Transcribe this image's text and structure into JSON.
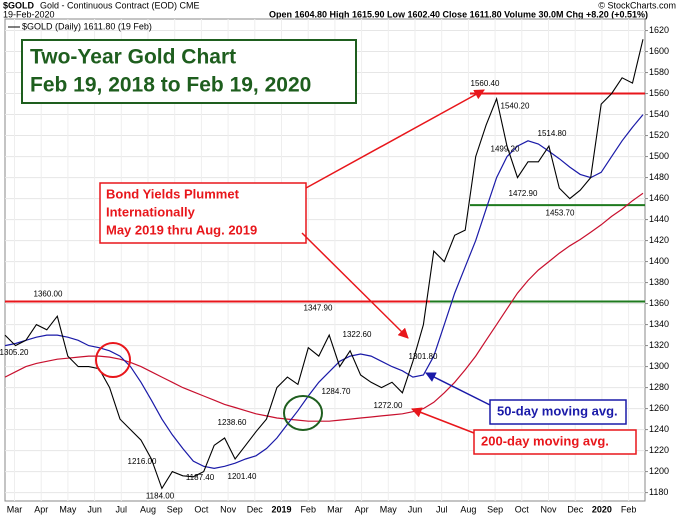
{
  "chart_data": {
    "type": "line",
    "symbol": "$GOLD",
    "subtitle": "Gold - Continuous Contract (EOD) CME",
    "date": "19-Feb-2020",
    "quote": "Open 1604.80  High 1615.90  Low 1602.40  Close 1611.80  Volume 30.0M  Chg +8.20 (+0.51%)",
    "credit": "© StockCharts.com",
    "title": [
      "Two-Year Gold Chart",
      "Feb 19, 2018 to Feb 19, 2020"
    ],
    "callout": [
      "Bond Yields Plummet",
      "Internationally",
      "May 2019 thru Aug. 2019"
    ],
    "x_labels": [
      "Mar",
      "Apr",
      "May",
      "Jun",
      "Jul",
      "Aug",
      "Sep",
      "Oct",
      "Nov",
      "Dec",
      "2019",
      "Feb",
      "Mar",
      "Apr",
      "May",
      "Jun",
      "Jul",
      "Aug",
      "Sep",
      "Oct",
      "Nov",
      "Dec",
      "2020",
      "Feb"
    ],
    "ylim": [
      1172,
      1631
    ],
    "yticks": [
      1180,
      1200,
      1220,
      1240,
      1260,
      1280,
      1300,
      1320,
      1340,
      1360,
      1380,
      1400,
      1420,
      1440,
      1460,
      1480,
      1500,
      1520,
      1540,
      1560,
      1580,
      1600,
      1620
    ],
    "series": [
      {
        "name": "$GOLD (Daily) 1611.80 (19 Feb)",
        "color": "#000000",
        "values": [
          1330,
          1320,
          1325,
          1340,
          1335,
          1348,
          1310,
          1300,
          1300,
          1298,
          1280,
          1250,
          1240,
          1230,
          1212,
          1184,
          1200,
          1196,
          1195,
          1200,
          1225,
          1232,
          1212,
          1225,
          1238,
          1250,
          1280,
          1290,
          1283,
          1318,
          1310,
          1330,
          1300,
          1315,
          1292,
          1285,
          1280,
          1285,
          1275,
          1305,
          1340,
          1410,
          1400,
          1425,
          1430,
          1500,
          1530,
          1555,
          1510,
          1480,
          1495,
          1495,
          1510,
          1470,
          1460,
          1468,
          1480,
          1550,
          1560,
          1575,
          1570,
          1611.8
        ]
      },
      {
        "name": "50-day moving avg.",
        "color": "#1a1aa8",
        "values": [
          1320,
          1322,
          1325,
          1328,
          1330,
          1330,
          1328,
          1325,
          1320,
          1318,
          1315,
          1310,
          1300,
          1285,
          1268,
          1250,
          1235,
          1222,
          1210,
          1205,
          1203,
          1205,
          1208,
          1212,
          1215,
          1222,
          1232,
          1245,
          1258,
          1272,
          1285,
          1295,
          1305,
          1310,
          1312,
          1310,
          1305,
          1300,
          1296,
          1290,
          1292,
          1310,
          1340,
          1370,
          1395,
          1420,
          1450,
          1480,
          1500,
          1510,
          1515,
          1512,
          1505,
          1498,
          1490,
          1483,
          1480,
          1485,
          1500,
          1515,
          1528,
          1540
        ]
      },
      {
        "name": "200-day moving avg.",
        "color": "#c8102e",
        "values": [
          1290,
          1295,
          1300,
          1303,
          1305,
          1307,
          1308,
          1309,
          1310,
          1310,
          1309,
          1307,
          1304,
          1300,
          1295,
          1290,
          1285,
          1280,
          1276,
          1272,
          1268,
          1264,
          1261,
          1258,
          1255,
          1253,
          1251,
          1250,
          1249,
          1248,
          1248,
          1248,
          1249,
          1250,
          1251,
          1252,
          1253,
          1254,
          1255,
          1257,
          1260,
          1266,
          1275,
          1285,
          1297,
          1310,
          1325,
          1340,
          1355,
          1370,
          1382,
          1392,
          1400,
          1408,
          1415,
          1421,
          1428,
          1435,
          1443,
          1450,
          1458,
          1465
        ]
      }
    ],
    "levels": [
      {
        "value": 1362,
        "color": "#e8161b"
      },
      {
        "value": 1362,
        "color": "#1e7a1e"
      },
      {
        "value": 1560,
        "color": "#e8161b"
      },
      {
        "value": 1453.7,
        "color": "#1e7a1e"
      }
    ],
    "annotations": [
      {
        "value": 1360,
        "label": "1360.00"
      },
      {
        "value": 1305.2,
        "label": "1305.20"
      },
      {
        "value": 1216,
        "label": "1216.00"
      },
      {
        "value": 1184,
        "label": "1184.00"
      },
      {
        "value": 1187.4,
        "label": "1187.40"
      },
      {
        "value": 1201.4,
        "label": "1201.40"
      },
      {
        "value": 1238.6,
        "label": "1238.60"
      },
      {
        "value": 1347.9,
        "label": "1347.90"
      },
      {
        "value": 1322.6,
        "label": "1322.60"
      },
      {
        "value": 1284.7,
        "label": "1284.70"
      },
      {
        "value": 1301.8,
        "label": "1301.80"
      },
      {
        "value": 1272,
        "label": "1272.00"
      },
      {
        "value": 1560.4,
        "label": "1560.40"
      },
      {
        "value": 1540.2,
        "label": "1540.20"
      },
      {
        "value": 1499.2,
        "label": "1499.20"
      },
      {
        "value": 1472.9,
        "label": "1472.90"
      },
      {
        "value": 1514.8,
        "label": "1514.80"
      },
      {
        "value": 1453.7,
        "label": "1453.70"
      }
    ]
  }
}
